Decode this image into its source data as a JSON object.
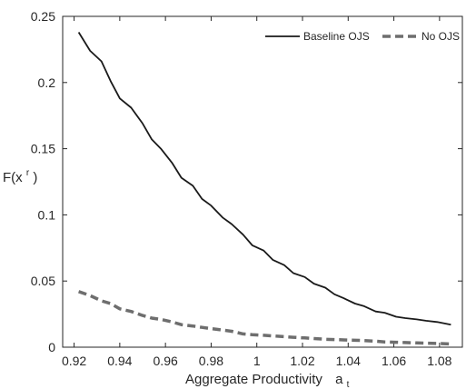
{
  "chart_data": {
    "type": "line",
    "title": "",
    "xlabel": "Aggregate Productivity",
    "xlabel_symbol": "a",
    "xlabel_symbol_sub": "t",
    "ylabel": "F(x",
    "ylabel_sup": "r",
    "ylabel_close": ")",
    "xlim": [
      0.915,
      1.09
    ],
    "ylim": [
      0,
      0.25
    ],
    "xticks": [
      0.92,
      0.94,
      0.96,
      0.98,
      1,
      1.02,
      1.04,
      1.06,
      1.08
    ],
    "xtick_labels": [
      "0.92",
      "0.94",
      "0.96",
      "0.98",
      "1",
      "1.02",
      "1.04",
      "1.06",
      "1.08"
    ],
    "yticks": [
      0,
      0.05,
      0.1,
      0.15,
      0.2,
      0.25
    ],
    "ytick_labels": [
      "0",
      "0.05",
      "0.1",
      "0.15",
      "0.2",
      "0.25"
    ],
    "grid": false,
    "legend_position": "top-right",
    "x": [
      0.922,
      0.927,
      0.932,
      0.936,
      0.94,
      0.945,
      0.95,
      0.954,
      0.958,
      0.963,
      0.967,
      0.972,
      0.976,
      0.98,
      0.985,
      0.989,
      0.994,
      0.998,
      1.003,
      1.007,
      1.012,
      1.016,
      1.021,
      1.025,
      1.03,
      1.034,
      1.038,
      1.043,
      1.047,
      1.052,
      1.056,
      1.061,
      1.065,
      1.07,
      1.074,
      1.079,
      1.085
    ],
    "series": [
      {
        "name": "Baseline OJS",
        "color": "#1a1a1a",
        "dash": "solid",
        "values": [
          0.238,
          0.224,
          0.216,
          0.201,
          0.188,
          0.181,
          0.169,
          0.157,
          0.15,
          0.139,
          0.128,
          0.122,
          0.112,
          0.107,
          0.098,
          0.093,
          0.085,
          0.077,
          0.073,
          0.066,
          0.062,
          0.056,
          0.053,
          0.048,
          0.045,
          0.04,
          0.037,
          0.033,
          0.031,
          0.027,
          0.026,
          0.023,
          0.022,
          0.021,
          0.02,
          0.019,
          0.017
        ]
      },
      {
        "name": "No OJS",
        "color": "#6e6e6e",
        "dash": "dashed",
        "values": [
          0.042,
          0.039,
          0.035,
          0.033,
          0.029,
          0.027,
          0.024,
          0.022,
          0.021,
          0.019,
          0.017,
          0.016,
          0.015,
          0.014,
          0.013,
          0.012,
          0.01,
          0.0095,
          0.009,
          0.0085,
          0.008,
          0.0075,
          0.007,
          0.0065,
          0.006,
          0.0058,
          0.0055,
          0.0052,
          0.005,
          0.0045,
          0.004,
          0.0037,
          0.0035,
          0.0032,
          0.003,
          0.0028,
          0.0025
        ]
      }
    ]
  }
}
